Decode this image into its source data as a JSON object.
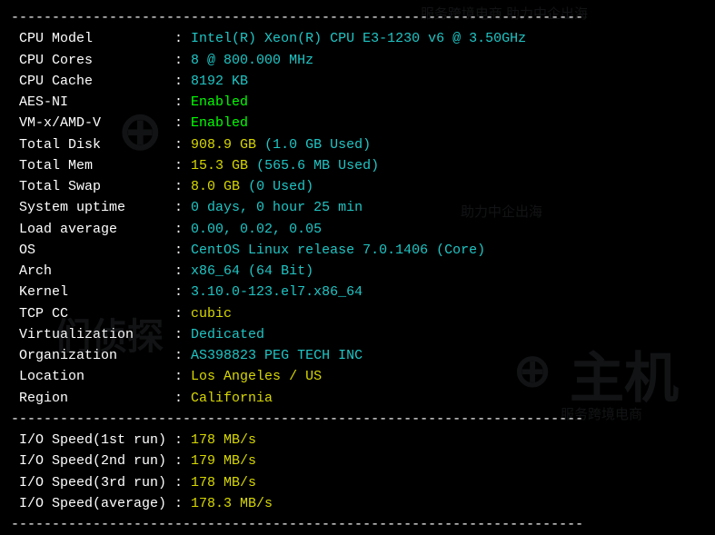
{
  "colors": {
    "bg": "#000000",
    "white": "#ffffff",
    "cyan": "#20c5c5",
    "green": "#00ff00",
    "yellow": "#d7d700"
  },
  "label_width": 19,
  "rows": [
    {
      "label": "CPU Model",
      "segments": [
        {
          "text": "Intel(R) Xeon(R) CPU E3-1230 v6 @ 3.50GHz",
          "color": "cyan"
        }
      ]
    },
    {
      "label": "CPU Cores",
      "segments": [
        {
          "text": "8 @ 800.000 MHz",
          "color": "cyan"
        }
      ]
    },
    {
      "label": "CPU Cache",
      "segments": [
        {
          "text": "8192 KB",
          "color": "cyan"
        }
      ]
    },
    {
      "label": "AES-NI",
      "segments": [
        {
          "text": "Enabled",
          "color": "green"
        }
      ]
    },
    {
      "label": "VM-x/AMD-V",
      "segments": [
        {
          "text": "Enabled",
          "color": "green"
        }
      ]
    },
    {
      "label": "Total Disk",
      "segments": [
        {
          "text": "908.9 GB ",
          "color": "yellow"
        },
        {
          "text": "(1.0 GB Used)",
          "color": "cyan"
        }
      ]
    },
    {
      "label": "Total Mem",
      "segments": [
        {
          "text": "15.3 GB ",
          "color": "yellow"
        },
        {
          "text": "(565.6 MB Used)",
          "color": "cyan"
        }
      ]
    },
    {
      "label": "Total Swap",
      "segments": [
        {
          "text": "8.0 GB ",
          "color": "yellow"
        },
        {
          "text": "(0 Used)",
          "color": "cyan"
        }
      ]
    },
    {
      "label": "System uptime",
      "segments": [
        {
          "text": "0 days, 0 hour 25 min",
          "color": "cyan"
        }
      ]
    },
    {
      "label": "Load average",
      "segments": [
        {
          "text": "0.00, 0.02, 0.05",
          "color": "cyan"
        }
      ]
    },
    {
      "label": "OS",
      "segments": [
        {
          "text": "CentOS Linux release 7.0.1406 (Core)",
          "color": "cyan"
        }
      ]
    },
    {
      "label": "Arch",
      "segments": [
        {
          "text": "x86_64 (64 Bit)",
          "color": "cyan"
        }
      ]
    },
    {
      "label": "Kernel",
      "segments": [
        {
          "text": "3.10.0-123.el7.x86_64",
          "color": "cyan"
        }
      ]
    },
    {
      "label": "TCP CC",
      "segments": [
        {
          "text": "cubic",
          "color": "yellow"
        }
      ]
    },
    {
      "label": "Virtualization",
      "segments": [
        {
          "text": "Dedicated",
          "color": "cyan"
        }
      ]
    },
    {
      "label": "Organization",
      "segments": [
        {
          "text": "AS398823 PEG TECH INC",
          "color": "cyan"
        }
      ]
    },
    {
      "label": "Location",
      "segments": [
        {
          "text": "Los Angeles / US",
          "color": "yellow"
        }
      ]
    },
    {
      "label": "Region",
      "segments": [
        {
          "text": "California",
          "color": "yellow"
        }
      ]
    }
  ],
  "io_rows": [
    {
      "label": "I/O Speed(1st run)",
      "value": "178 MB/s"
    },
    {
      "label": "I/O Speed(2nd run)",
      "value": "179 MB/s"
    },
    {
      "label": "I/O Speed(3rd run)",
      "value": "178 MB/s"
    },
    {
      "label": "I/O Speed(average)",
      "value": "178.3 MB/s"
    }
  ],
  "divider": "----------------------------------------------------------------------",
  "watermarks": {
    "top_right_sub": "服务跨境电商 助力中企出海",
    "mid_right_sub": "助力中企出海",
    "bottom_right_logo": "主机",
    "bottom_right_sub": "服务跨境电商"
  }
}
